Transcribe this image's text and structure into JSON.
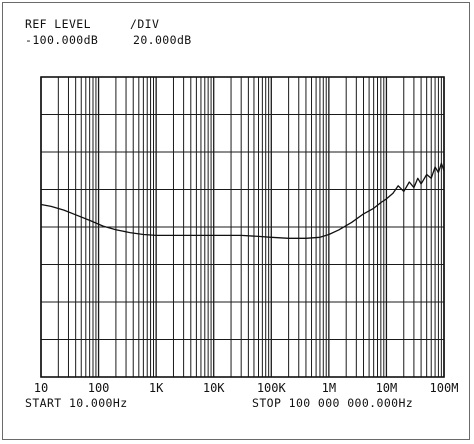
{
  "header": {
    "ref_level_label": "REF LEVEL",
    "div_label": "/DIV",
    "ref_level_value": "-100.000dB",
    "div_value": "20.000dB"
  },
  "footer": {
    "start_label": "START 10.000Hz",
    "stop_label": "STOP 100 000 000.000Hz"
  },
  "chart_data": {
    "type": "line",
    "x_scale": "log",
    "xlim": [
      10,
      100000000
    ],
    "ylim": [
      -100,
      60
    ],
    "y_divisions": 8,
    "grid": true,
    "x_tick_labels": [
      {
        "value": 10,
        "label": "10"
      },
      {
        "value": 100,
        "label": "100"
      },
      {
        "value": 1000,
        "label": "1K"
      },
      {
        "value": 10000,
        "label": "10K"
      },
      {
        "value": 100000,
        "label": "100K"
      },
      {
        "value": 1000000,
        "label": "1M"
      },
      {
        "value": 10000000,
        "label": "10M"
      },
      {
        "value": 100000000,
        "label": "100M"
      }
    ],
    "series": [
      {
        "color": "#111111",
        "x": [
          10,
          15,
          25,
          40,
          70,
          120,
          200,
          350,
          600,
          1000,
          2000,
          5000,
          10000,
          30000,
          60000,
          100000,
          200000,
          400000,
          700000,
          1000000,
          1500000,
          2500000,
          4000000,
          6000000,
          8000000,
          10000000,
          13000000,
          16000000,
          20000000,
          25000000,
          30000000,
          35000000,
          40000000,
          50000000,
          60000000,
          70000000,
          80000000,
          90000000,
          100000000
        ],
        "y": [
          -8,
          -9,
          -11,
          -13.5,
          -16.5,
          -19.5,
          -21.5,
          -23,
          -24,
          -24.5,
          -24.5,
          -24.5,
          -24.5,
          -24.5,
          -25,
          -25.5,
          -26,
          -26,
          -25.5,
          -24,
          -21.5,
          -17.5,
          -13,
          -10,
          -7,
          -5,
          -2,
          2,
          -1,
          4,
          1,
          6,
          3,
          8,
          6,
          12,
          9,
          14,
          10
        ]
      }
    ]
  }
}
